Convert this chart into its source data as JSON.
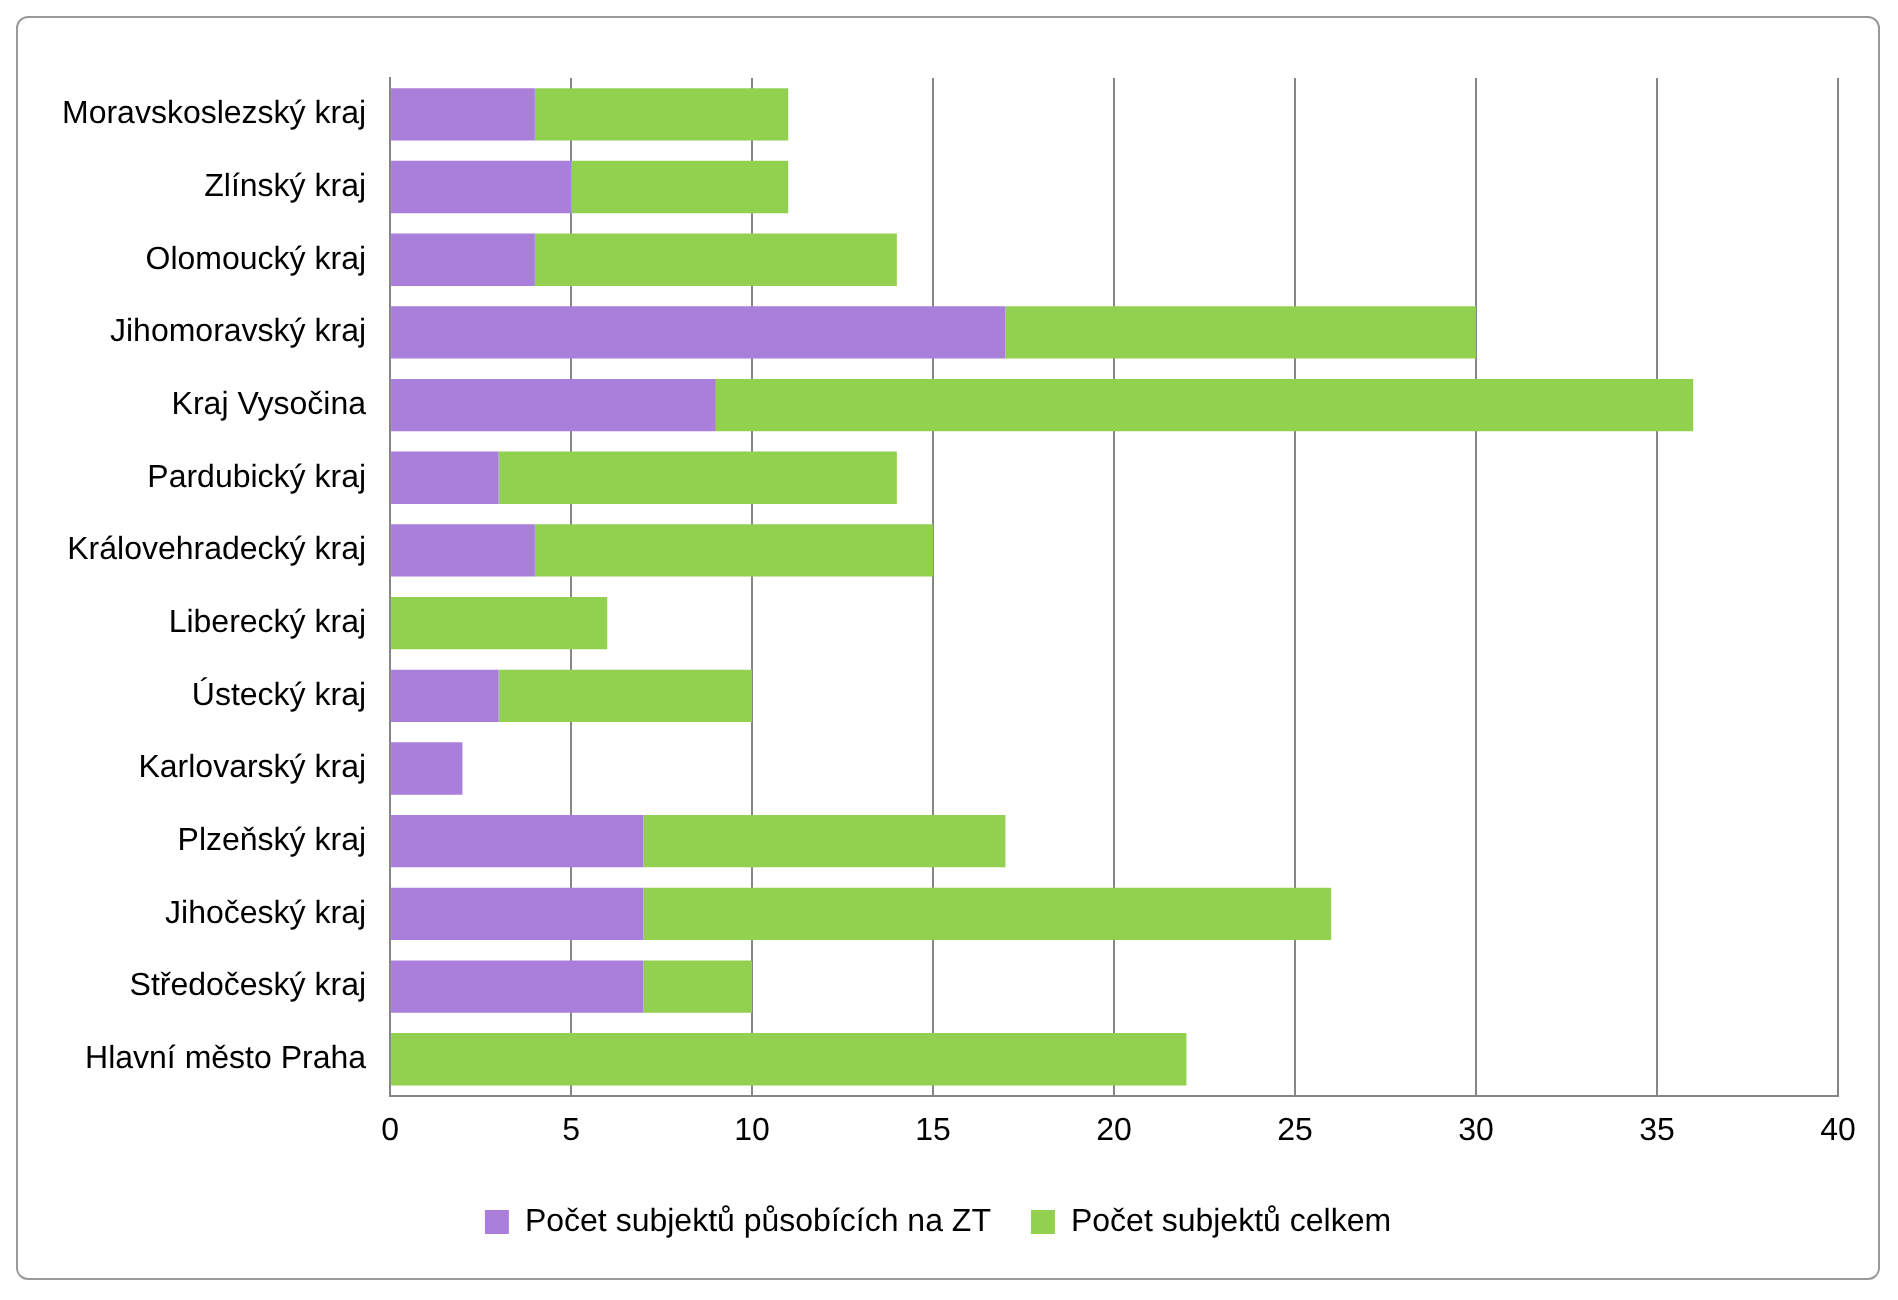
{
  "chart_data": {
    "type": "bar",
    "orientation": "horizontal",
    "stacked": true,
    "categories": [
      "Moravskoslezský kraj",
      "Zlínský kraj",
      "Olomoucký kraj",
      "Jihomoravský kraj",
      "Kraj Vysočina",
      "Pardubický kraj",
      "Královehradecký kraj",
      "Liberecký kraj",
      "Ústecký kraj",
      "Karlovarský kraj",
      "Plzeňský kraj",
      "Jihočeský kraj",
      "Středočeský kraj",
      "Hlavní město Praha"
    ],
    "series": [
      {
        "name": "Počet subjektů působících na ZT",
        "color": "#aa7fdb",
        "values": [
          4,
          5,
          4,
          17,
          9,
          3,
          4,
          0,
          3,
          2,
          7,
          7,
          7,
          0
        ]
      },
      {
        "name": "Počet subjektů celkem",
        "color": "#92d050",
        "values": [
          7,
          6,
          10,
          13,
          27,
          11,
          11,
          6,
          7,
          0,
          10,
          19,
          3,
          22
        ]
      }
    ],
    "xlim": [
      0,
      40
    ],
    "xticks": [
      0,
      5,
      10,
      15,
      20,
      25,
      30,
      35,
      40
    ],
    "grid": "x",
    "legend": "bottom"
  }
}
